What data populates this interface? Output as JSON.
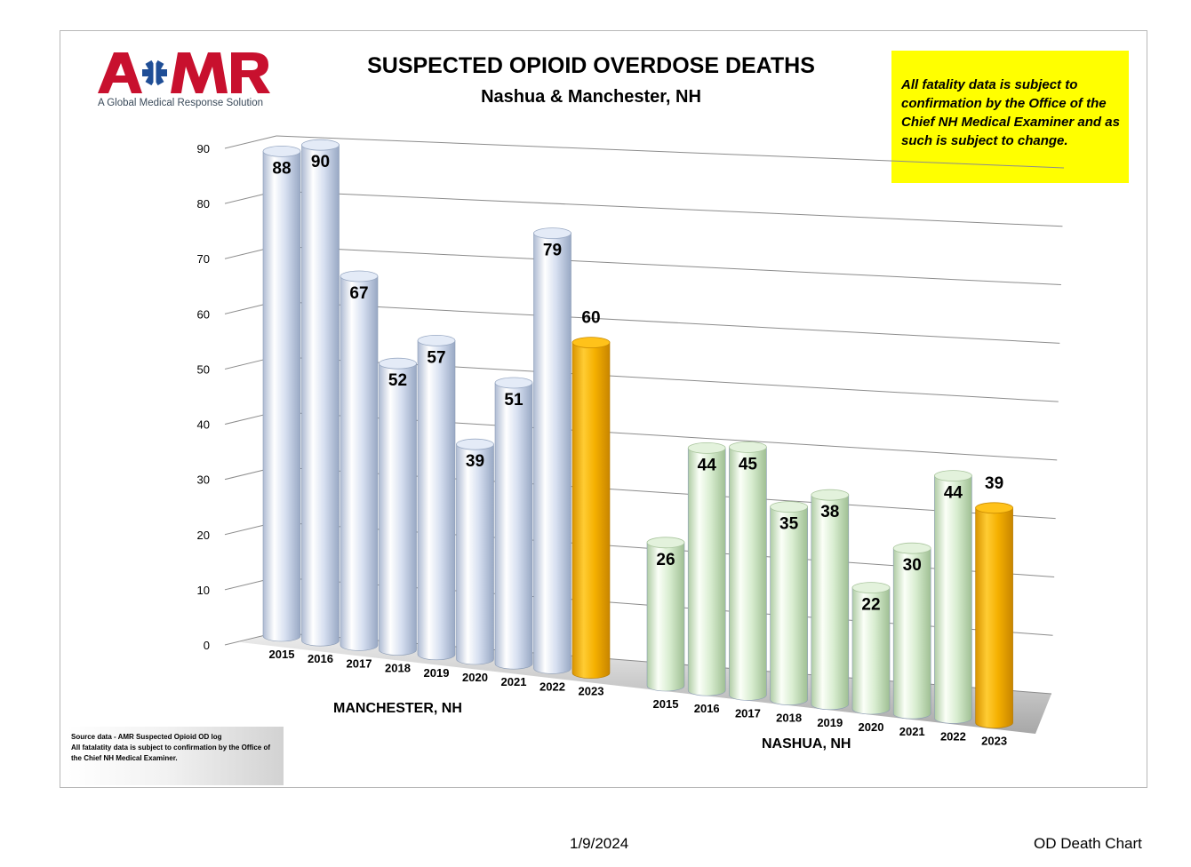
{
  "logo": {
    "text": "AMR",
    "tagline": "A Global Medical Response Solution",
    "brand_red": "#c8102e",
    "brand_blue": "#1f4e96"
  },
  "header": {
    "title": "SUSPECTED OPIOID OVERDOSE DEATHS",
    "subtitle": "Nashua & Manchester, NH"
  },
  "note": "All fatality data is subject to confirmation by the Office of the Chief NH Medical Examiner and as such is subject to change.",
  "source": {
    "line1": "Source data - AMR Suspected Opioid OD log",
    "line2": "All fatalatity data is subject to confirmation by the Office of the Chief NH Medical Examiner."
  },
  "footer": {
    "date": "1/9/2024",
    "name": "OD Death Chart"
  },
  "colors": {
    "manchester": "#c9d6ec",
    "nashua": "#cfe8c6",
    "highlight_2023": "#f5b000",
    "yellow_note": "#ffff00"
  },
  "chart_data": {
    "type": "bar",
    "y_ticks": [
      0,
      10,
      20,
      30,
      40,
      50,
      60,
      70,
      80,
      90
    ],
    "ylim": [
      0,
      90
    ],
    "grid": true,
    "groups": [
      {
        "name": "MANCHESTER, NH",
        "categories": [
          "2015",
          "2016",
          "2017",
          "2018",
          "2019",
          "2020",
          "2021",
          "2022",
          "2023"
        ],
        "values": [
          88,
          90,
          67,
          52,
          57,
          39,
          51,
          79,
          60
        ]
      },
      {
        "name": "NASHUA, NH",
        "categories": [
          "2015",
          "2016",
          "2017",
          "2018",
          "2019",
          "2020",
          "2021",
          "2022",
          "2023"
        ],
        "values": [
          26,
          44,
          45,
          35,
          38,
          22,
          30,
          44,
          39
        ]
      }
    ]
  }
}
